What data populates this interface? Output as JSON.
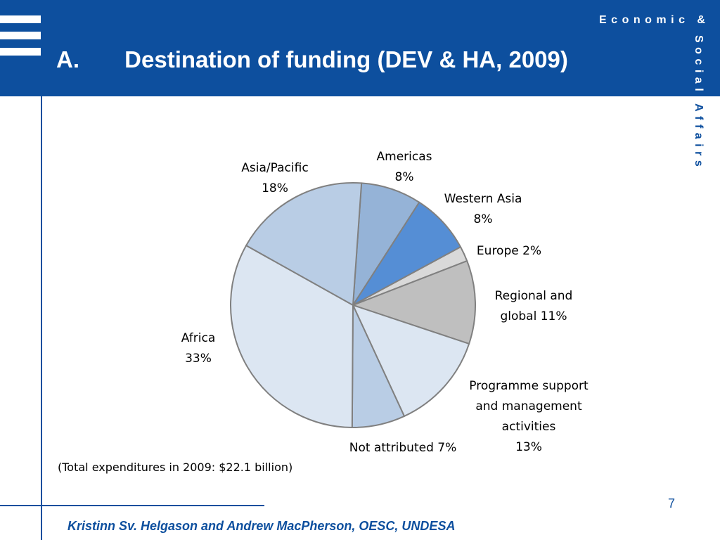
{
  "slide": {
    "title": "A.       Destination of funding (DEV & HA, 2009)",
    "brand_horizontal": "Economic &",
    "brand_vertical_top": "Social",
    "brand_vertical_bottom": "Affairs",
    "note": "(Total expenditures in 2009: $22.1 billion)",
    "page_number": "7",
    "footer": "Kristinn Sv. Helgason and Andrew MacPherson, OESC, UNDESA"
  },
  "chart_data": {
    "type": "pie",
    "title": "",
    "slices": [
      {
        "lines": [
          "Americas",
          "8%"
        ],
        "value": 8,
        "color": "#95b3d7"
      },
      {
        "lines": [
          "Western Asia",
          "8%"
        ],
        "value": 8,
        "color": "#558ed5"
      },
      {
        "lines": [
          "Europe 2%"
        ],
        "value": 2,
        "color": "#d9d9d9"
      },
      {
        "lines": [
          "Regional and",
          "global 11%"
        ],
        "value": 11,
        "color": "#bfbfbf"
      },
      {
        "lines": [
          "Programme support",
          "and management",
          "activities",
          "13%"
        ],
        "value": 13,
        "color": "#dce6f2"
      },
      {
        "lines": [
          "Not attributed 7%"
        ],
        "value": 7,
        "color": "#b9cde5"
      },
      {
        "lines": [
          "Africa",
          "33%"
        ],
        "value": 33,
        "color": "#dce6f2"
      },
      {
        "lines": [
          "Asia/Pacific",
          "18%"
        ],
        "value": 18,
        "color": "#b9cde5"
      }
    ]
  }
}
